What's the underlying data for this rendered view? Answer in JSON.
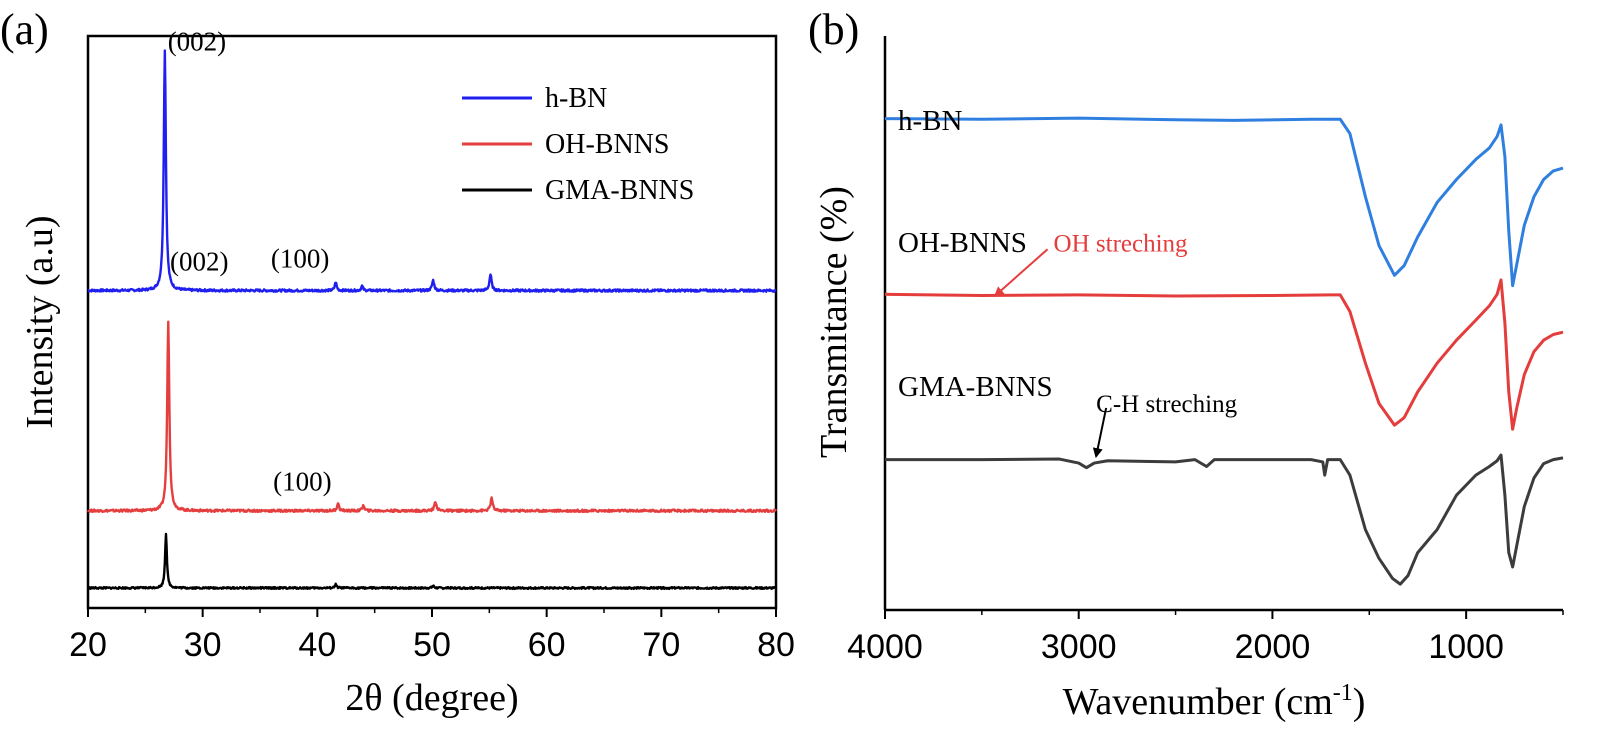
{
  "colors": {
    "blue": "#1f1ff0",
    "red": "#e53e3e",
    "black": "#000000",
    "ftir_blue": "#2f7fe0",
    "ftir_red": "#e53c3c",
    "ftir_gray": "#3c3c3c"
  },
  "chart_data": [
    {
      "type": "line",
      "panel": "(a)",
      "xlabel": "2θ (degree)",
      "ylabel": "Intensity (a.u)",
      "xlim": [
        20,
        80
      ],
      "ylim": [
        0,
        1
      ],
      "xticks": [
        20,
        30,
        40,
        50,
        60,
        70,
        80
      ],
      "yticks": [],
      "legend": {
        "placement": "top-right",
        "entries": [
          "h-BN",
          "OH-BNNS",
          "GMA-BNNS"
        ]
      },
      "series": [
        {
          "name": "h-BN",
          "color": "#1f1ff0",
          "offset": 0.555,
          "baseline_noise": 0.002,
          "peaks": [
            {
              "x": 26.7,
              "height": 0.42,
              "width": 0.35
            },
            {
              "x": 41.6,
              "height": 0.015,
              "width": 0.3
            },
            {
              "x": 43.9,
              "height": 0.008,
              "width": 0.3
            },
            {
              "x": 50.1,
              "height": 0.018,
              "width": 0.35
            },
            {
              "x": 55.1,
              "height": 0.028,
              "width": 0.35
            }
          ]
        },
        {
          "name": "OH-BNNS",
          "color": "#e53e3e",
          "offset": 0.17,
          "baseline_noise": 0.002,
          "peaks": [
            {
              "x": 27.0,
              "height": 0.33,
              "width": 0.35
            },
            {
              "x": 41.8,
              "height": 0.014,
              "width": 0.3
            },
            {
              "x": 44.0,
              "height": 0.01,
              "width": 0.3
            },
            {
              "x": 50.3,
              "height": 0.016,
              "width": 0.35
            },
            {
              "x": 55.2,
              "height": 0.022,
              "width": 0.35
            }
          ]
        },
        {
          "name": "GMA-BNNS",
          "color": "#000000",
          "offset": 0.035,
          "baseline_noise": 0.0015,
          "peaks": [
            {
              "x": 26.8,
              "height": 0.095,
              "width": 0.3
            },
            {
              "x": 41.6,
              "height": 0.006,
              "width": 0.3
            },
            {
              "x": 50.1,
              "height": 0.004,
              "width": 0.3
            }
          ]
        }
      ],
      "annotations": [
        {
          "text": "(002)",
          "x": 29.5,
          "y": 0.975,
          "series": "h-BN"
        },
        {
          "text": "(100)",
          "x": 38.5,
          "y": 0.595,
          "series": "h-BN"
        },
        {
          "text": "(002)",
          "x": 29.7,
          "y": 0.59,
          "series": "OH-BNNS"
        },
        {
          "text": "(100)",
          "x": 38.7,
          "y": 0.205,
          "series": "OH-BNNS"
        }
      ]
    },
    {
      "type": "line",
      "panel": "(b)",
      "xlabel": "Wavenumber (cm",
      "xlabel_sup": "-1",
      "xlabel_end": ")",
      "ylabel": "Transmitance (%)",
      "xlim": [
        4000,
        500
      ],
      "ylim": [
        0,
        1
      ],
      "xticks": [
        4000,
        3000,
        2000,
        1000
      ],
      "yticks": [],
      "series": [
        {
          "name": "h-BN",
          "color": "#2f7fe0",
          "label": "h-BN",
          "points": [
            [
              4000,
              0.856
            ],
            [
              3500,
              0.855
            ],
            [
              3000,
              0.857
            ],
            [
              2500,
              0.854
            ],
            [
              2200,
              0.853
            ],
            [
              1800,
              0.855
            ],
            [
              1650,
              0.855
            ],
            [
              1600,
              0.83
            ],
            [
              1520,
              0.72
            ],
            [
              1450,
              0.635
            ],
            [
              1370,
              0.583
            ],
            [
              1320,
              0.6
            ],
            [
              1250,
              0.65
            ],
            [
              1150,
              0.71
            ],
            [
              1050,
              0.75
            ],
            [
              950,
              0.785
            ],
            [
              880,
              0.805
            ],
            [
              840,
              0.825
            ],
            [
              820,
              0.845
            ],
            [
              800,
              0.79
            ],
            [
              780,
              0.66
            ],
            [
              760,
              0.565
            ],
            [
              740,
              0.6
            ],
            [
              700,
              0.67
            ],
            [
              650,
              0.72
            ],
            [
              600,
              0.75
            ],
            [
              550,
              0.765
            ],
            [
              500,
              0.77
            ]
          ]
        },
        {
          "name": "OH-BNNS",
          "color": "#e53c3c",
          "label": "OH-BNNS",
          "points": [
            [
              4000,
              0.55
            ],
            [
              3500,
              0.548
            ],
            [
              3000,
              0.549
            ],
            [
              2500,
              0.547
            ],
            [
              2000,
              0.548
            ],
            [
              1700,
              0.549
            ],
            [
              1650,
              0.549
            ],
            [
              1600,
              0.52
            ],
            [
              1520,
              0.43
            ],
            [
              1450,
              0.36
            ],
            [
              1370,
              0.322
            ],
            [
              1320,
              0.335
            ],
            [
              1250,
              0.38
            ],
            [
              1150,
              0.43
            ],
            [
              1050,
              0.47
            ],
            [
              950,
              0.505
            ],
            [
              880,
              0.53
            ],
            [
              840,
              0.55
            ],
            [
              820,
              0.575
            ],
            [
              800,
              0.5
            ],
            [
              780,
              0.38
            ],
            [
              760,
              0.315
            ],
            [
              740,
              0.35
            ],
            [
              700,
              0.41
            ],
            [
              650,
              0.45
            ],
            [
              600,
              0.47
            ],
            [
              550,
              0.48
            ],
            [
              500,
              0.484
            ]
          ]
        },
        {
          "name": "GMA-BNNS",
          "color": "#3c3c3c",
          "label": "GMA-BNNS",
          "points": [
            [
              4000,
              0.262
            ],
            [
              3500,
              0.262
            ],
            [
              3100,
              0.263
            ],
            [
              3000,
              0.256
            ],
            [
              2960,
              0.248
            ],
            [
              2920,
              0.256
            ],
            [
              2850,
              0.26
            ],
            [
              2500,
              0.258
            ],
            [
              2400,
              0.262
            ],
            [
              2340,
              0.25
            ],
            [
              2300,
              0.262
            ],
            [
              2000,
              0.262
            ],
            [
              1800,
              0.262
            ],
            [
              1740,
              0.258
            ],
            [
              1730,
              0.235
            ],
            [
              1715,
              0.262
            ],
            [
              1700,
              0.262
            ],
            [
              1650,
              0.262
            ],
            [
              1600,
              0.235
            ],
            [
              1520,
              0.14
            ],
            [
              1450,
              0.09
            ],
            [
              1380,
              0.055
            ],
            [
              1340,
              0.045
            ],
            [
              1300,
              0.06
            ],
            [
              1250,
              0.1
            ],
            [
              1200,
              0.12
            ],
            [
              1150,
              0.14
            ],
            [
              1050,
              0.2
            ],
            [
              950,
              0.235
            ],
            [
              880,
              0.25
            ],
            [
              840,
              0.26
            ],
            [
              820,
              0.27
            ],
            [
              800,
              0.2
            ],
            [
              780,
              0.1
            ],
            [
              760,
              0.075
            ],
            [
              740,
              0.11
            ],
            [
              700,
              0.18
            ],
            [
              650,
              0.23
            ],
            [
              600,
              0.255
            ],
            [
              550,
              0.262
            ],
            [
              500,
              0.265
            ]
          ]
        }
      ],
      "annotations": [
        {
          "text": "OH streching",
          "color": "#e53c3c",
          "x": 3130,
          "y": 0.625,
          "arrow_to": [
            3430,
            0.548
          ]
        },
        {
          "text": "C-H streching",
          "color": "#000000",
          "x": 2910,
          "y": 0.345,
          "arrow_to": [
            2910,
            0.268
          ]
        }
      ]
    }
  ]
}
